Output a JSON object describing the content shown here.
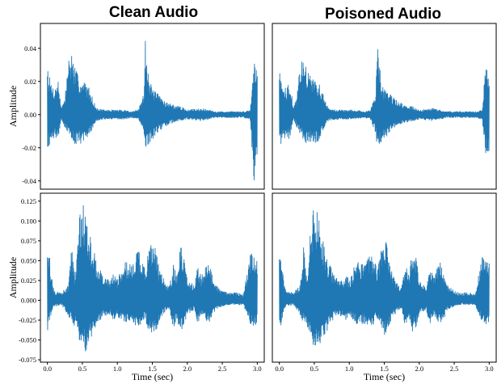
{
  "figure": {
    "column_titles": [
      "Clean Audio",
      "Poisoned Audio"
    ]
  },
  "chart_data": [
    {
      "type": "line",
      "panel": "row1-clean",
      "ylabel": "Amplitude",
      "xlim": [
        -0.1,
        3.1
      ],
      "ylim": [
        -0.045,
        0.055
      ],
      "yticks": [
        -0.04,
        -0.02,
        0.0,
        0.02,
        0.04
      ],
      "ytick_labels": [
        "-0.04",
        "-0.02",
        "0.00",
        "0.02",
        "0.04"
      ],
      "series": [
        {
          "color": "#1f77b4",
          "envelope": {
            "t": [
              0.0,
              0.02,
              0.05,
              0.1,
              0.15,
              0.2,
              0.25,
              0.3,
              0.35,
              0.4,
              0.45,
              0.5,
              0.55,
              0.6,
              0.7,
              0.8,
              0.9,
              1.0,
              1.1,
              1.2,
              1.3,
              1.38,
              1.4,
              1.45,
              1.5,
              1.6,
              1.7,
              1.8,
              1.9,
              2.0,
              2.2,
              2.4,
              2.5,
              2.6,
              2.7,
              2.8,
              2.9,
              2.95,
              3.0
            ],
            "upper": [
              0.035,
              0.025,
              0.02,
              0.015,
              0.022,
              0.005,
              0.01,
              0.034,
              0.038,
              0.028,
              0.023,
              0.02,
              0.02,
              0.016,
              0.004,
              0.003,
              0.003,
              0.003,
              0.003,
              0.002,
              0.003,
              0.013,
              0.052,
              0.022,
              0.016,
              0.012,
              0.008,
              0.006,
              0.005,
              0.003,
              0.004,
              0.002,
              0.002,
              0.002,
              0.002,
              0.002,
              0.003,
              0.033,
              0.03
            ],
            "lower": [
              -0.02,
              -0.02,
              -0.015,
              -0.014,
              -0.015,
              -0.003,
              -0.008,
              -0.012,
              -0.016,
              -0.018,
              -0.017,
              -0.018,
              -0.017,
              -0.012,
              -0.004,
              -0.003,
              -0.003,
              -0.003,
              -0.003,
              -0.002,
              -0.003,
              -0.012,
              -0.022,
              -0.018,
              -0.015,
              -0.01,
              -0.007,
              -0.005,
              -0.004,
              -0.003,
              -0.004,
              -0.002,
              -0.002,
              -0.002,
              -0.002,
              -0.002,
              -0.003,
              -0.043,
              -0.025
            ]
          }
        }
      ]
    },
    {
      "type": "line",
      "panel": "row1-poisoned",
      "xlim": [
        -0.1,
        3.1
      ],
      "ylim": [
        -0.045,
        0.055
      ],
      "series": [
        {
          "color": "#1f77b4",
          "envelope": {
            "t": [
              0.0,
              0.02,
              0.05,
              0.1,
              0.15,
              0.2,
              0.25,
              0.3,
              0.35,
              0.4,
              0.45,
              0.5,
              0.55,
              0.6,
              0.7,
              0.8,
              0.9,
              1.0,
              1.1,
              1.2,
              1.3,
              1.38,
              1.4,
              1.45,
              1.5,
              1.6,
              1.7,
              1.8,
              1.9,
              2.0,
              2.2,
              2.4,
              2.5,
              2.6,
              2.7,
              2.8,
              2.9,
              2.95,
              3.0
            ],
            "upper": [
              0.032,
              0.024,
              0.02,
              0.015,
              0.021,
              0.005,
              0.01,
              0.033,
              0.037,
              0.027,
              0.023,
              0.02,
              0.02,
              0.016,
              0.004,
              0.003,
              0.003,
              0.003,
              0.003,
              0.002,
              0.003,
              0.013,
              0.05,
              0.022,
              0.016,
              0.012,
              0.008,
              0.006,
              0.005,
              0.003,
              0.004,
              0.002,
              0.002,
              0.002,
              0.002,
              0.002,
              0.003,
              0.031,
              0.028
            ],
            "lower": [
              -0.02,
              -0.02,
              -0.015,
              -0.014,
              -0.015,
              -0.003,
              -0.008,
              -0.012,
              -0.016,
              -0.018,
              -0.017,
              -0.018,
              -0.017,
              -0.012,
              -0.004,
              -0.003,
              -0.003,
              -0.003,
              -0.003,
              -0.002,
              -0.003,
              -0.012,
              -0.022,
              -0.018,
              -0.015,
              -0.01,
              -0.007,
              -0.005,
              -0.004,
              -0.003,
              -0.004,
              -0.002,
              -0.002,
              -0.002,
              -0.002,
              -0.002,
              -0.003,
              -0.024,
              -0.022
            ]
          }
        }
      ]
    },
    {
      "type": "line",
      "panel": "row2-clean",
      "xlabel": "Time (sec)",
      "ylabel": "Amplitude",
      "xlim": [
        -0.1,
        3.1
      ],
      "ylim": [
        -0.078,
        0.135
      ],
      "xticks": [
        0.0,
        0.5,
        1.0,
        1.5,
        2.0,
        2.5,
        3.0
      ],
      "xtick_labels": [
        "0.0",
        "0.5",
        "1.0",
        "1.5",
        "2.0",
        "2.5",
        "3.0"
      ],
      "yticks": [
        -0.075,
        -0.05,
        -0.025,
        0.0,
        0.025,
        0.05,
        0.075,
        0.1,
        0.125
      ],
      "ytick_labels": [
        "-0.075",
        "-0.050",
        "-0.025",
        "0.000",
        "0.025",
        "0.050",
        "0.075",
        "0.100",
        "0.125"
      ],
      "series": [
        {
          "color": "#1f77b4",
          "envelope": {
            "t": [
              0.0,
              0.02,
              0.05,
              0.08,
              0.1,
              0.2,
              0.3,
              0.35,
              0.4,
              0.45,
              0.48,
              0.5,
              0.55,
              0.6,
              0.65,
              0.7,
              0.8,
              0.9,
              0.95,
              1.0,
              1.1,
              1.2,
              1.3,
              1.4,
              1.45,
              1.5,
              1.55,
              1.6,
              1.7,
              1.75,
              1.8,
              1.85,
              1.9,
              1.95,
              2.0,
              2.1,
              2.15,
              2.2,
              2.3,
              2.35,
              2.4,
              2.5,
              2.6,
              2.7,
              2.8,
              2.9,
              2.95,
              3.0
            ],
            "upper": [
              0.082,
              0.07,
              0.035,
              0.02,
              0.012,
              0.01,
              0.02,
              0.07,
              0.03,
              0.108,
              0.11,
              0.128,
              0.115,
              0.085,
              0.07,
              0.05,
              0.03,
              0.025,
              0.035,
              0.025,
              0.05,
              0.045,
              0.065,
              0.04,
              0.065,
              0.08,
              0.07,
              0.04,
              0.02,
              0.02,
              0.045,
              0.035,
              0.07,
              0.06,
              0.025,
              0.02,
              0.045,
              0.03,
              0.05,
              0.035,
              0.02,
              0.012,
              0.01,
              0.01,
              0.008,
              0.06,
              0.06,
              0.05
            ],
            "lower": [
              -0.04,
              -0.035,
              -0.02,
              -0.01,
              -0.008,
              -0.006,
              -0.02,
              -0.03,
              -0.035,
              -0.05,
              -0.06,
              -0.06,
              -0.065,
              -0.05,
              -0.045,
              -0.035,
              -0.02,
              -0.02,
              -0.025,
              -0.02,
              -0.03,
              -0.03,
              -0.035,
              -0.025,
              -0.04,
              -0.045,
              -0.04,
              -0.025,
              -0.012,
              -0.015,
              -0.035,
              -0.025,
              -0.04,
              -0.035,
              -0.018,
              -0.012,
              -0.03,
              -0.02,
              -0.03,
              -0.025,
              -0.012,
              -0.008,
              -0.006,
              -0.006,
              -0.006,
              -0.03,
              -0.035,
              -0.03
            ]
          }
        }
      ]
    },
    {
      "type": "line",
      "panel": "row2-poisoned",
      "xlabel": "Time (sec)",
      "xlim": [
        -0.1,
        3.1
      ],
      "ylim": [
        -0.078,
        0.135
      ],
      "xticks": [
        0.0,
        0.5,
        1.0,
        1.5,
        2.0,
        2.5,
        3.0
      ],
      "xtick_labels": [
        "0.0",
        "0.5",
        "1.0",
        "1.5",
        "2.0",
        "2.5",
        "3.0"
      ],
      "series": [
        {
          "color": "#1f77b4",
          "envelope": {
            "t": [
              0.0,
              0.02,
              0.05,
              0.08,
              0.1,
              0.2,
              0.3,
              0.35,
              0.4,
              0.45,
              0.48,
              0.5,
              0.55,
              0.6,
              0.65,
              0.7,
              0.8,
              0.9,
              0.95,
              1.0,
              1.1,
              1.2,
              1.3,
              1.4,
              1.45,
              1.5,
              1.55,
              1.6,
              1.7,
              1.75,
              1.8,
              1.85,
              1.9,
              1.95,
              2.0,
              2.1,
              2.15,
              2.2,
              2.3,
              2.35,
              2.4,
              2.5,
              2.6,
              2.7,
              2.8,
              2.9,
              2.95,
              3.0
            ],
            "upper": [
              0.078,
              0.068,
              0.035,
              0.02,
              0.012,
              0.01,
              0.02,
              0.07,
              0.03,
              0.105,
              0.11,
              0.126,
              0.112,
              0.085,
              0.07,
              0.05,
              0.03,
              0.025,
              0.035,
              0.025,
              0.05,
              0.045,
              0.065,
              0.04,
              0.065,
              0.08,
              0.07,
              0.04,
              0.02,
              0.02,
              0.045,
              0.035,
              0.07,
              0.06,
              0.025,
              0.02,
              0.045,
              0.03,
              0.05,
              0.035,
              0.02,
              0.012,
              0.01,
              0.01,
              0.008,
              0.058,
              0.058,
              0.048
            ],
            "lower": [
              -0.04,
              -0.035,
              -0.02,
              -0.01,
              -0.008,
              -0.006,
              -0.02,
              -0.03,
              -0.035,
              -0.05,
              -0.06,
              -0.06,
              -0.065,
              -0.05,
              -0.045,
              -0.035,
              -0.02,
              -0.02,
              -0.025,
              -0.02,
              -0.03,
              -0.03,
              -0.035,
              -0.025,
              -0.04,
              -0.045,
              -0.04,
              -0.025,
              -0.012,
              -0.015,
              -0.035,
              -0.025,
              -0.04,
              -0.035,
              -0.018,
              -0.012,
              -0.03,
              -0.02,
              -0.03,
              -0.025,
              -0.012,
              -0.008,
              -0.006,
              -0.006,
              -0.006,
              -0.03,
              -0.035,
              -0.03
            ]
          }
        }
      ]
    }
  ]
}
